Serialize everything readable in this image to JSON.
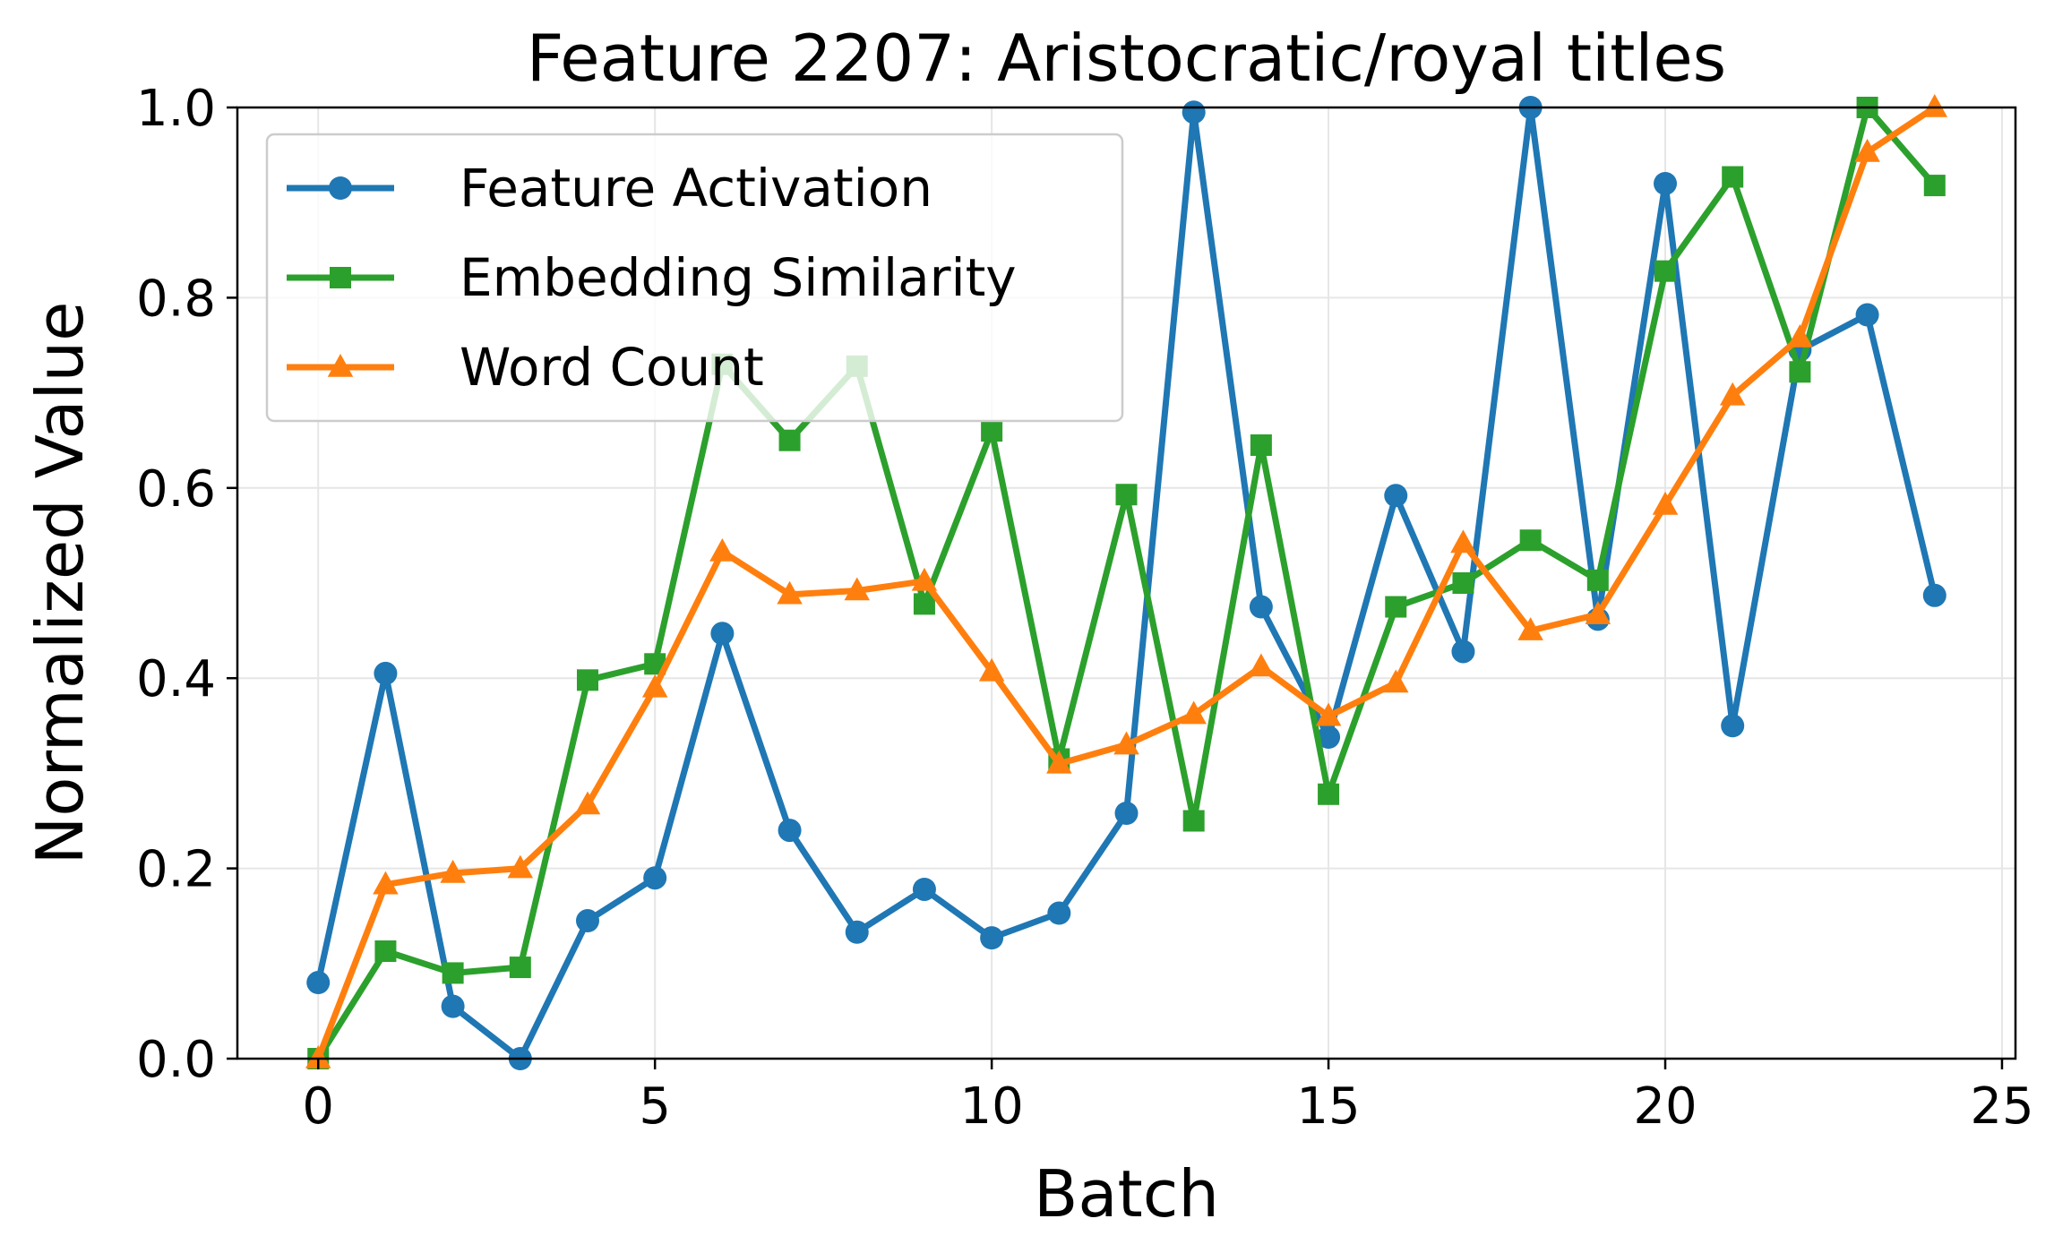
{
  "chart_data": {
    "type": "line",
    "title": "Feature 2207: Aristocratic/royal titles",
    "xlabel": "Batch",
    "ylabel": "Normalized Value",
    "xlim": [
      -1.2,
      25.2
    ],
    "ylim": [
      0,
      1
    ],
    "xticks": [
      0,
      5,
      10,
      15,
      20,
      25
    ],
    "yticks": [
      0.0,
      0.2,
      0.4,
      0.6,
      0.8,
      1.0
    ],
    "ytick_labels": [
      "0.0",
      "0.2",
      "0.4",
      "0.6",
      "0.8",
      "1.0"
    ],
    "grid": true,
    "legend_position": "upper-left",
    "x": [
      0,
      1,
      2,
      3,
      4,
      5,
      6,
      7,
      8,
      9,
      10,
      11,
      12,
      13,
      14,
      15,
      16,
      17,
      18,
      19,
      20,
      21,
      22,
      23,
      24
    ],
    "series": [
      {
        "name": "Feature Activation",
        "color": "#1f77b4",
        "marker": "circle",
        "values": [
          0.08,
          0.405,
          0.055,
          0.0,
          0.145,
          0.19,
          0.447,
          0.24,
          0.133,
          0.178,
          0.127,
          0.153,
          0.258,
          0.995,
          0.475,
          0.338,
          0.592,
          0.428,
          1.0,
          0.462,
          0.92,
          0.35,
          0.745,
          0.782,
          0.487
        ]
      },
      {
        "name": "Embedding Similarity",
        "color": "#2ca02c",
        "marker": "square",
        "values": [
          0.0,
          0.113,
          0.09,
          0.096,
          0.398,
          0.415,
          0.73,
          0.65,
          0.728,
          0.478,
          0.66,
          0.315,
          0.593,
          0.25,
          0.645,
          0.278,
          0.475,
          0.5,
          0.545,
          0.503,
          0.828,
          0.927,
          0.722,
          1.0,
          0.918
        ]
      },
      {
        "name": "Word Count",
        "color": "#ff7f0e",
        "marker": "triangle",
        "values": [
          0.0,
          0.183,
          0.195,
          0.2,
          0.267,
          0.39,
          0.533,
          0.488,
          0.492,
          0.502,
          0.407,
          0.31,
          0.33,
          0.362,
          0.412,
          0.36,
          0.395,
          0.542,
          0.45,
          0.467,
          0.582,
          0.697,
          0.758,
          0.953,
          1.0
        ]
      }
    ]
  }
}
